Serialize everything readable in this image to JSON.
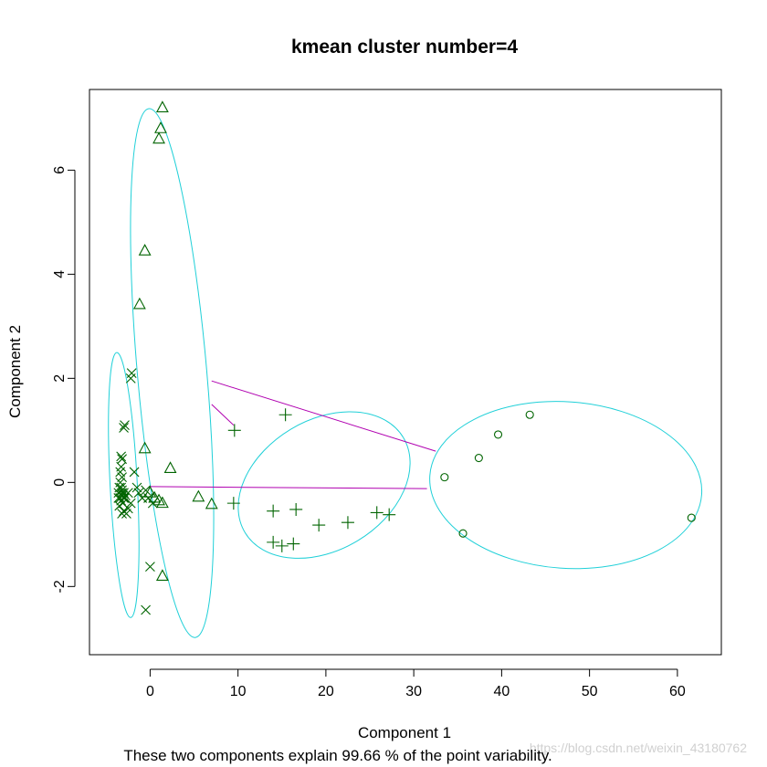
{
  "chart_data": {
    "type": "scatter",
    "title": "kmean cluster number=4",
    "xlabel": "Component 1",
    "ylabel": "Component 2",
    "subtitle": "These two components explain 99.66 % of the point variability.",
    "xlim": [
      -6.9,
      65
    ],
    "ylim": [
      -3.31,
      7.55
    ],
    "xticks": [
      0,
      10,
      20,
      30,
      40,
      50,
      60
    ],
    "yticks": [
      -2,
      0,
      2,
      4,
      6
    ],
    "grid": false,
    "legend": "none",
    "colors": {
      "points": "#006400",
      "ellipse": "#20d0d8",
      "connector": "#b000b0",
      "frame": "#000000"
    },
    "series": [
      {
        "marker": "x",
        "points": [
          [
            -3.4,
            0.0
          ],
          [
            -3.3,
            -0.1
          ],
          [
            -3.2,
            -0.2
          ],
          [
            -3.1,
            -0.25
          ],
          [
            -3.0,
            -0.3
          ],
          [
            -3.3,
            -0.35
          ],
          [
            -3.2,
            -0.15
          ],
          [
            -3.4,
            -0.3
          ],
          [
            -3.0,
            -0.2
          ],
          [
            -3.5,
            -0.1
          ],
          [
            -3.6,
            -0.2
          ],
          [
            -3.1,
            -0.4
          ],
          [
            -2.9,
            -0.3
          ],
          [
            -3.2,
            0.1
          ],
          [
            -3.4,
            0.2
          ],
          [
            -3.3,
            0.3
          ],
          [
            -3.2,
            0.45
          ],
          [
            -3.5,
            -0.45
          ],
          [
            -3.6,
            -0.3
          ],
          [
            -2.8,
            -0.25
          ],
          [
            -3.0,
            -0.55
          ],
          [
            -2.7,
            -0.6
          ],
          [
            -3.2,
            -0.6
          ],
          [
            -3.0,
            1.05
          ],
          [
            -2.9,
            1.1
          ],
          [
            -2.1,
            2.1
          ],
          [
            -2.2,
            2.0
          ],
          [
            -2.5,
            -0.2
          ],
          [
            -1.8,
            0.2
          ],
          [
            -1.5,
            -0.1
          ],
          [
            -1.3,
            -0.2
          ],
          [
            -0.9,
            -0.3
          ],
          [
            -0.5,
            -0.15
          ],
          [
            -0.2,
            -0.3
          ],
          [
            0.3,
            -0.4
          ],
          [
            -2.5,
            -0.5
          ],
          [
            -2.2,
            -0.4
          ],
          [
            0.0,
            -1.62
          ],
          [
            -0.5,
            -2.45
          ],
          [
            -3.3,
            0.5
          ]
        ]
      },
      {
        "marker": "triangle",
        "points": [
          [
            1.4,
            7.2
          ],
          [
            1.2,
            6.8
          ],
          [
            1.0,
            6.6
          ],
          [
            -0.6,
            4.45
          ],
          [
            -1.2,
            3.42
          ],
          [
            -0.6,
            0.65
          ],
          [
            2.3,
            0.27
          ],
          [
            1.4,
            -1.8
          ],
          [
            0.5,
            -0.3
          ],
          [
            1.0,
            -0.35
          ],
          [
            1.4,
            -0.4
          ],
          [
            5.5,
            -0.28
          ],
          [
            7.0,
            -0.42
          ],
          [
            0.0,
            -0.2
          ]
        ]
      },
      {
        "marker": "plus",
        "points": [
          [
            9.6,
            1.0
          ],
          [
            15.4,
            1.3
          ],
          [
            9.5,
            -0.4
          ],
          [
            14.0,
            -0.55
          ],
          [
            16.6,
            -0.52
          ],
          [
            19.2,
            -0.82
          ],
          [
            22.5,
            -0.77
          ],
          [
            25.8,
            -0.58
          ],
          [
            27.2,
            -0.62
          ],
          [
            14.0,
            -1.15
          ],
          [
            15.0,
            -1.22
          ],
          [
            16.3,
            -1.18
          ]
        ]
      },
      {
        "marker": "circle",
        "points": [
          [
            43.2,
            1.3
          ],
          [
            39.6,
            0.92
          ],
          [
            37.4,
            0.47
          ],
          [
            33.5,
            0.1
          ],
          [
            35.6,
            -0.98
          ],
          [
            61.6,
            -0.68
          ]
        ]
      }
    ],
    "ellipses": [
      {
        "cx": -3.0,
        "cy": -0.05,
        "rx": 1.55,
        "ry": 2.55,
        "angle": -3
      },
      {
        "cx": 2.5,
        "cy": 2.1,
        "rx": 3.95,
        "ry": 5.1,
        "angle": -5
      },
      {
        "cx": 19.8,
        "cy": -0.05,
        "rx": 10.5,
        "ry": 1.25,
        "angle": -31
      },
      {
        "cx": 47.3,
        "cy": -0.05,
        "rx": 15.5,
        "ry": 1.6,
        "angle": 4
      }
    ],
    "connectors": [
      [
        [
          7.0,
          1.95
        ],
        [
          32.5,
          0.6
        ]
      ],
      [
        [
          7.0,
          1.5
        ],
        [
          9.5,
          1.1
        ]
      ],
      [
        [
          0.0,
          -0.08
        ],
        [
          31.5,
          -0.12
        ]
      ]
    ]
  },
  "watermark": "https://blog.csdn.net/weixin_43180762"
}
